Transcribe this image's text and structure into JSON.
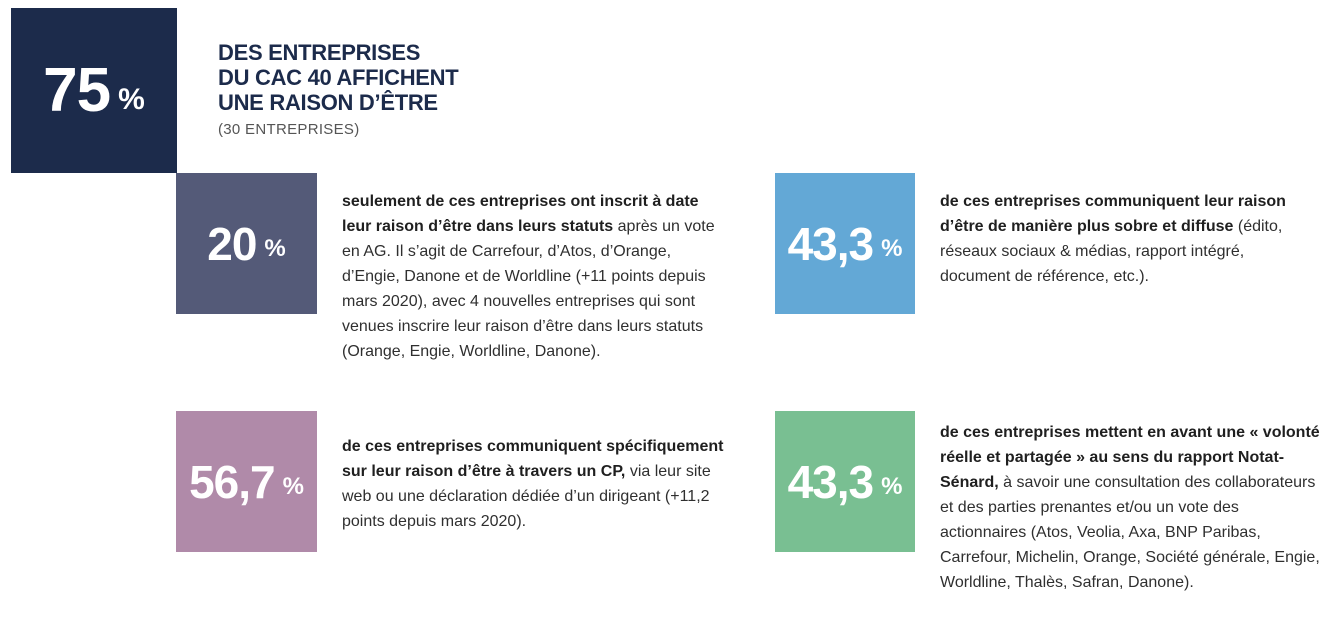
{
  "hero": {
    "value": "75",
    "unit": "%",
    "title_lines": [
      "DES ENTREPRISES",
      "DU CAC 40 AFFICHENT",
      "UNE RAISON D’ÊTRE"
    ],
    "subtitle": "(30 ENTREPRISES)",
    "color": "#1c2b4b"
  },
  "stats": [
    {
      "value": "20",
      "unit": "%",
      "color": "#545a78",
      "bold": "seulement de ces entreprises ont inscrit à date leur raison d’être dans leurs statuts",
      "text": " après un vote en AG. Il s’agit de Carrefour, d’Atos, d’Orange, d’Engie, Danone et de Worldline (+11 points depuis mars 2020), avec 4 nouvelles entreprises qui sont venues inscrire leur raison d’être dans leurs statuts (Orange, Engie, Worldline, Danone)."
    },
    {
      "value": "43,3",
      "unit": "%",
      "color": "#63a8d6",
      "bold": "de ces entreprises communiquent leur raison d’être de manière plus sobre et diffuse",
      "text": " (édito, réseaux sociaux & médias, rapport intégré, document de référence, etc.)."
    },
    {
      "value": "56,7",
      "unit": "%",
      "color": "#b08aa9",
      "bold": "de ces entreprises communiquent spécifiquement sur leur raison d’être à travers un CP,",
      "text": " via leur site web ou une déclaration dédiée d’un dirigeant (+11,2 points depuis mars 2020)."
    },
    {
      "value": "43,3",
      "unit": "%",
      "color": "#79bf92",
      "bold": "de ces entreprises mettent en avant une « volonté réelle et partagée » au sens du rapport Notat-Sénard,",
      "text": " à savoir une consultation des collaborateurs et des parties prenantes et/ou un vote des actionnaires (Atos, Veolia, Axa, BNP Paribas, Carrefour, Michelin, Orange, Société générale, Engie, Worldline, Thalès, Safran, Danone)."
    }
  ]
}
